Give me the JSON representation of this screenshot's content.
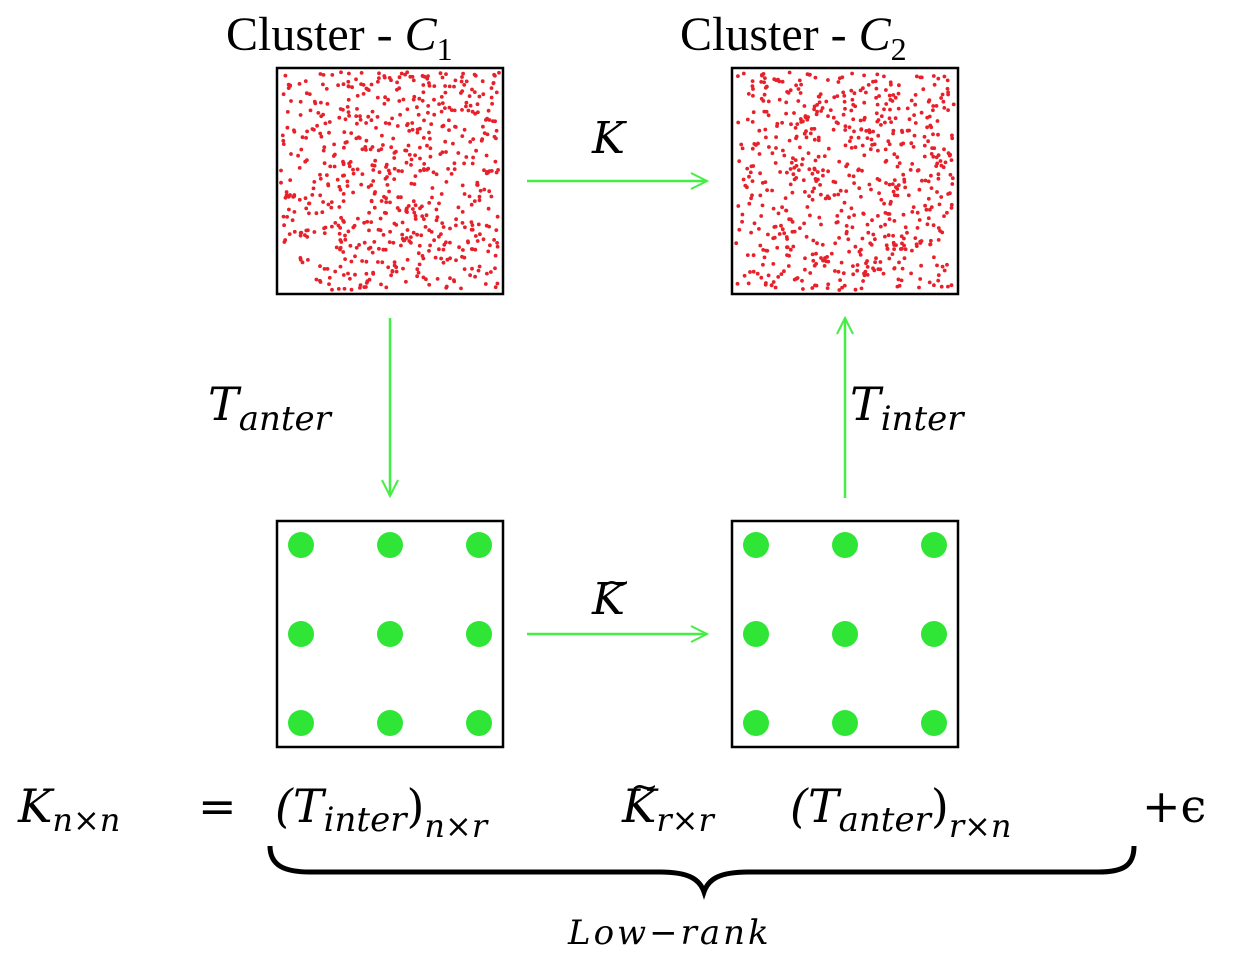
{
  "clusters": {
    "c1_title": "Cluster - ",
    "c1_sym": "C",
    "c1_sub": "1",
    "c2_title": "Cluster - ",
    "c2_sym": "C",
    "c2_sub": "2"
  },
  "arrows": {
    "top_label": "K",
    "bottom_label": "K",
    "bottom_label_accent": "~",
    "left_label_main": "T",
    "left_label_sub": "anter",
    "right_label_main": "T",
    "right_label_sub": "inter"
  },
  "equation": {
    "lhs_main": "K",
    "lhs_sub": "n×n",
    "equals": "=",
    "t_inter_open": "(T",
    "t_inter_sub": "inter",
    "t_inter_close": ")",
    "t_inter_dims": "n×r",
    "k_tilde_main": "K",
    "k_tilde_accent": "~",
    "k_tilde_dims": "r×r",
    "t_anter_open": "(T",
    "t_anter_sub": "anter",
    "t_anter_close": ")",
    "t_anter_dims": "r×n",
    "error_term": "+ϵ",
    "brace_label": "Low−rank"
  },
  "colors": {
    "dense_points": "#e8202a",
    "landmark_points": "#2fe636",
    "arrows": "#44ee44",
    "box_stroke": "#000000"
  },
  "landmark_grid": {
    "rows": 3,
    "cols": 3
  },
  "dense_point_count": 650
}
